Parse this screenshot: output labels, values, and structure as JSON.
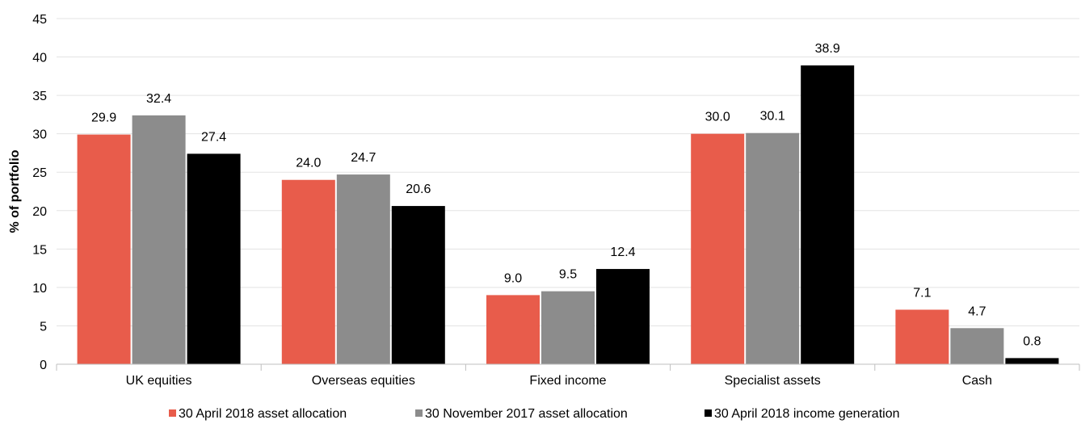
{
  "chart_data": {
    "type": "bar",
    "title": "",
    "xlabel": "",
    "ylabel": "% of portfolio",
    "ylim": [
      0,
      45
    ],
    "yticks": [
      0,
      5,
      10,
      15,
      20,
      25,
      30,
      35,
      40,
      45
    ],
    "grid": true,
    "legend_position": "bottom",
    "categories": [
      "UK equities",
      "Overseas equities",
      "Fixed income",
      "Specialist assets",
      "Cash"
    ],
    "series": [
      {
        "name": "30 April 2018 asset allocation",
        "color": "#e85c4b",
        "values": [
          29.9,
          24.0,
          9.0,
          30.0,
          7.1
        ],
        "labels": [
          "29.9",
          "24.0",
          "9.0",
          "30.0",
          "7.1"
        ]
      },
      {
        "name": "30 November 2017 asset allocation",
        "color": "#8c8c8c",
        "values": [
          32.4,
          24.7,
          9.5,
          30.1,
          4.7
        ],
        "labels": [
          "32.4",
          "24.7",
          "9.5",
          "30.1",
          "4.7"
        ]
      },
      {
        "name": "30 April 2018 income generation",
        "color": "#000000",
        "values": [
          27.4,
          20.6,
          12.4,
          38.9,
          0.8
        ],
        "labels": [
          "27.4",
          "20.6",
          "12.4",
          "38.9",
          "0.8"
        ]
      }
    ]
  }
}
